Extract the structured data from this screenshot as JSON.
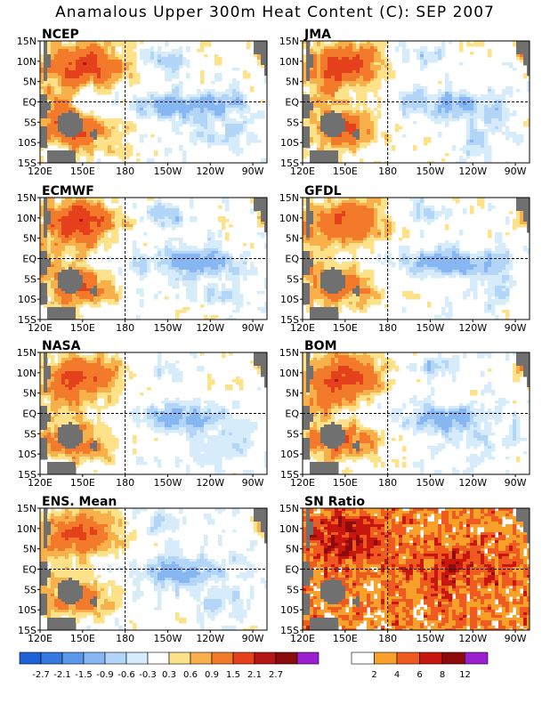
{
  "title": "Anamalous Upper 300m Heat Content (C): SEP 2007",
  "chart_data": {
    "type": "heatmap",
    "title": "Anamalous Upper 300m Heat Content (C): SEP 2007",
    "x_ticks": [
      "120E",
      "150E",
      "180",
      "150W",
      "120W",
      "90W"
    ],
    "y_ticks": [
      "15N",
      "10N",
      "5N",
      "EQ",
      "5S",
      "10S",
      "15S"
    ],
    "xlim": [
      "120E",
      "80W"
    ],
    "ylim": [
      "15S",
      "15N"
    ],
    "grid": "dashed lines at EQ and 180",
    "panels": [
      {
        "label": "NCEP",
        "scale": "anomaly",
        "strength": 1.0
      },
      {
        "label": "JMA",
        "scale": "anomaly",
        "strength": 0.95
      },
      {
        "label": "ECMWF",
        "scale": "anomaly",
        "strength": 1.0
      },
      {
        "label": "GFDL",
        "scale": "anomaly",
        "strength": 0.9
      },
      {
        "label": "NASA",
        "scale": "anomaly",
        "strength": 0.85
      },
      {
        "label": "BOM",
        "scale": "anomaly",
        "strength": 1.0
      },
      {
        "label": "ENS. Mean",
        "scale": "anomaly",
        "strength": 0.9
      },
      {
        "label": "SN Ratio",
        "scale": "snratio",
        "strength": 1.0
      }
    ],
    "anomaly_legend": {
      "labels": [
        "-2.7",
        "-2.1",
        "-1.5",
        "-0.9",
        "-0.6",
        "-0.3",
        "0.3",
        "0.6",
        "0.9",
        "1.5",
        "2.1",
        "2.7"
      ],
      "colors": [
        "#1d63d6",
        "#3478e0",
        "#5a99ea",
        "#86b7f2",
        "#b3d5f8",
        "#d6ecfb",
        "#ffffff",
        "#fde28a",
        "#f8b04a",
        "#f37a2a",
        "#e3401b",
        "#b71515",
        "#8a0b0b",
        "#9a1fd0"
      ]
    },
    "sn_legend": {
      "labels": [
        "2",
        "4",
        "6",
        "8",
        "12"
      ],
      "colors": [
        "#ffffff",
        "#f7a12a",
        "#ee5a1f",
        "#c8170f",
        "#8f0a0a",
        "#9a1fd0"
      ]
    },
    "land_color": "#707070"
  }
}
